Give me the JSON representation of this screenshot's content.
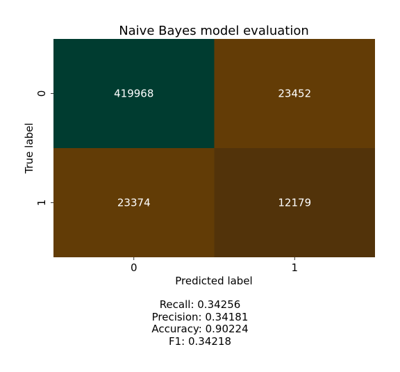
{
  "chart_data": {
    "type": "heatmap",
    "title": "Naive Bayes model evaluation",
    "xlabel": "Predicted label",
    "ylabel": "True label",
    "x_categories": [
      "0",
      "1"
    ],
    "y_categories": [
      "0",
      "1"
    ],
    "values": [
      [
        419968,
        23452
      ],
      [
        23374,
        12179
      ]
    ],
    "colormap": {
      "low": "#52330a",
      "mid": "#643d06",
      "high": "#003c30"
    },
    "colorbar": false,
    "grid": false
  },
  "metrics": {
    "recall": "Recall: 0.34256",
    "precision": "Precision: 0.34181",
    "accuracy": "Accuracy: 0.90224",
    "f1": "F1: 0.34218"
  }
}
